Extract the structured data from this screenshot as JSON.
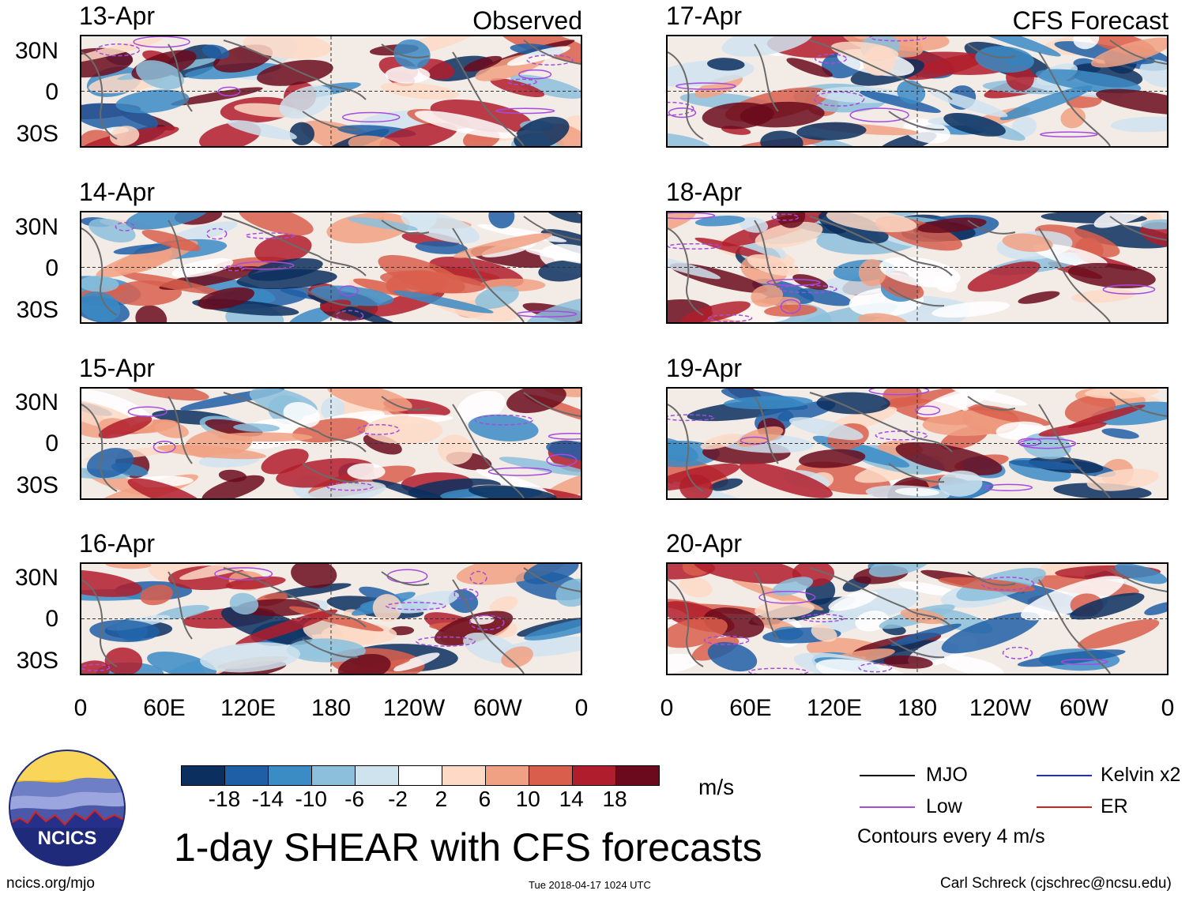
{
  "columns": {
    "observed_title": "Observed",
    "forecast_title": "CFS Forecast"
  },
  "observed_panels": [
    {
      "date": "13-Apr"
    },
    {
      "date": "14-Apr"
    },
    {
      "date": "15-Apr"
    },
    {
      "date": "16-Apr"
    }
  ],
  "forecast_panels": [
    {
      "date": "17-Apr"
    },
    {
      "date": "18-Apr"
    },
    {
      "date": "19-Apr"
    },
    {
      "date": "20-Apr"
    }
  ],
  "lat_labels": [
    "30N",
    "0",
    "30S"
  ],
  "lon_labels": [
    "0",
    "60E",
    "120E",
    "180",
    "120W",
    "60W",
    "0"
  ],
  "colorbar": {
    "colors": [
      "#0b2f5e",
      "#1f5fa6",
      "#3b8bc4",
      "#8bbfdc",
      "#cfe3ef",
      "#ffffff",
      "#fdd9c6",
      "#f1a183",
      "#d95f4c",
      "#b01d2c",
      "#6a0a1c"
    ],
    "ticks": [
      "-18",
      "-14",
      "-10",
      "-6",
      "-2",
      "2",
      "6",
      "10",
      "14",
      "18"
    ],
    "unit": "m/s"
  },
  "title": "1-day SHEAR with CFS forecasts",
  "legend": {
    "items": [
      {
        "label": "MJO",
        "color": "#000000"
      },
      {
        "label": "Kelvin x2",
        "color": "#1e2bd6"
      },
      {
        "label": "Low",
        "color": "#a64be0"
      },
      {
        "label": "ER",
        "color": "#d4231f"
      }
    ],
    "note": "Contours every 4 m/s"
  },
  "logo": {
    "text": "NCICS"
  },
  "footer": {
    "url": "ncics.org/mjo",
    "timestamp": "Tue 2018-04-17 1024 UTC",
    "credit": "Carl Schreck (cjschrec@ncsu.edu)"
  }
}
